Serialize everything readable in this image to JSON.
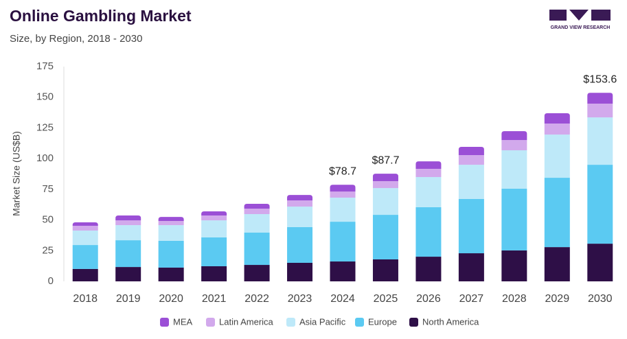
{
  "logo": "GRAND VIEW RESEARCH",
  "chart_data": {
    "type": "stacked-bar",
    "title": "Online Gambling Market",
    "subtitle": "Size, by Region, 2018 - 2030",
    "y_label": "Market Size (US$B)",
    "categories": [
      "2018",
      "2019",
      "2020",
      "2021",
      "2022",
      "2023",
      "2024",
      "2025",
      "2026",
      "2027",
      "2028",
      "2029",
      "2030"
    ],
    "series": [
      {
        "name": "MEA",
        "color": "#9b4fd6",
        "values": [
          2.8,
          4.0,
          3.3,
          3.3,
          3.9,
          4.4,
          5.5,
          6.1,
          6.1,
          6.7,
          7.3,
          8.4,
          8.8
        ]
      },
      {
        "name": "Latin America",
        "color": "#d2a9ec",
        "values": [
          3.9,
          3.9,
          3.4,
          4.0,
          4.5,
          5.1,
          5.0,
          5.6,
          6.7,
          7.9,
          8.3,
          9.0,
          11.2
        ]
      },
      {
        "name": "Asia Pacific",
        "color": "#bee9f9",
        "values": [
          11.8,
          12.3,
          12.8,
          13.9,
          15.1,
          16.7,
          19.6,
          21.8,
          24.6,
          27.9,
          31.3,
          35.2,
          38.6
        ]
      },
      {
        "name": "Europe",
        "color": "#5bcaf2",
        "values": [
          19.5,
          21.8,
          21.8,
          23.5,
          26.3,
          29.1,
          32.4,
          36.3,
          40.3,
          44.2,
          50.3,
          56.5,
          64.3
        ]
      },
      {
        "name": "North America",
        "color": "#2e0f47",
        "values": [
          10.1,
          11.7,
          11.2,
          12.3,
          13.4,
          15.1,
          16.2,
          17.9,
          20.1,
          22.9,
          25.2,
          27.9,
          30.7
        ]
      }
    ],
    "total_labels": [
      {
        "category": "2024",
        "value": 78.7,
        "label": "$78.7"
      },
      {
        "category": "2025",
        "value": 87.7,
        "label": "$87.7"
      },
      {
        "category": "2030",
        "value": 153.6,
        "label": "$153.6"
      }
    ],
    "ylim": [
      0,
      175
    ],
    "yticks": [
      0,
      25,
      50,
      75,
      100,
      125,
      150,
      175
    ],
    "grid": false,
    "legend": "bottom"
  }
}
